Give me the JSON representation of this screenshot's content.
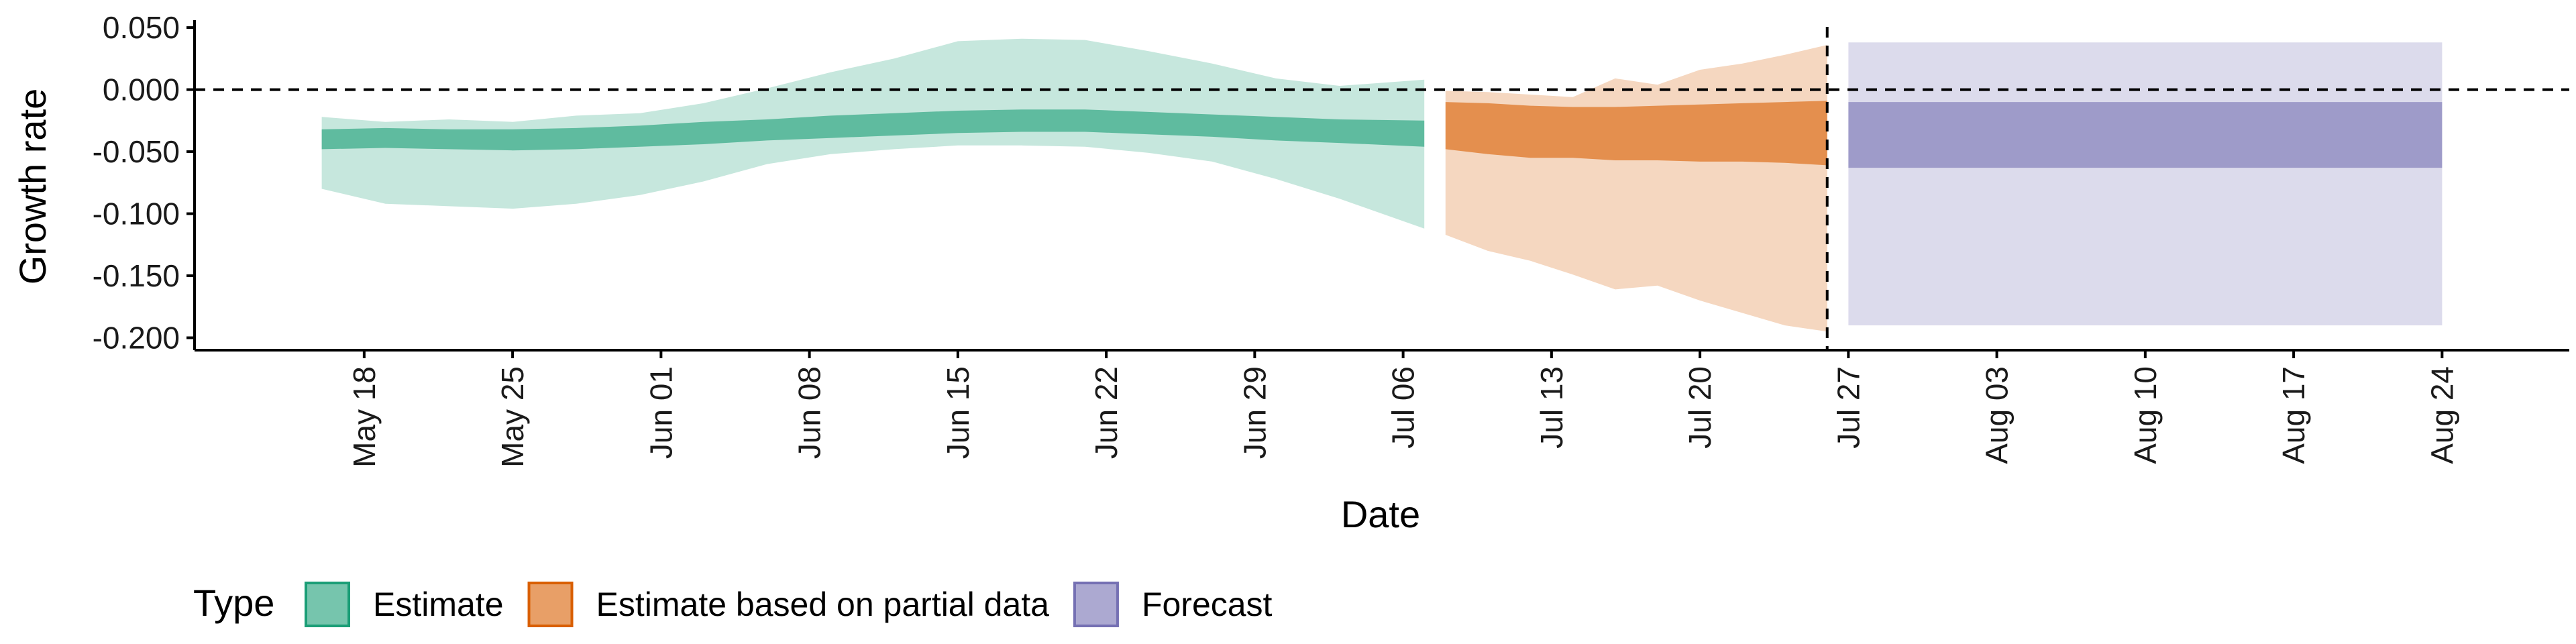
{
  "chart_data": {
    "type": "area",
    "xlabel": "Date",
    "ylabel": "Growth rate",
    "ylim": [
      -0.21,
      0.056
    ],
    "yticks": [
      0.05,
      0.0,
      -0.05,
      -0.1,
      -0.15,
      -0.2
    ],
    "ytick_labels": [
      "0.050",
      "0.000",
      "-0.050",
      "-0.100",
      "-0.150",
      "-0.200"
    ],
    "xlim": [
      "2020-05-10",
      "2020-08-30"
    ],
    "xticks": [
      "2020-05-18",
      "2020-05-25",
      "2020-06-01",
      "2020-06-08",
      "2020-06-15",
      "2020-06-22",
      "2020-06-29",
      "2020-07-06",
      "2020-07-13",
      "2020-07-20",
      "2020-07-27",
      "2020-08-03",
      "2020-08-10",
      "2020-08-17",
      "2020-08-24"
    ],
    "xtick_labels": [
      "May 18",
      "May 25",
      "Jun 01",
      "Jun 08",
      "Jun 15",
      "Jun 22",
      "Jun 29",
      "Jul 06",
      "Jul 13",
      "Jul 20",
      "Jul 27",
      "Aug 03",
      "Aug 10",
      "Aug 17",
      "Aug 24"
    ],
    "reference_lines": [
      {
        "axis": "y",
        "value": 0.0,
        "style": "dashed"
      },
      {
        "axis": "x",
        "value": "2020-07-26",
        "style": "dashed"
      }
    ],
    "grid": false,
    "legend": {
      "title": "Type",
      "position": "bottom-left",
      "entries": [
        {
          "label": "Estimate",
          "color": "#1b9e77"
        },
        {
          "label": "Estimate based on partial data",
          "color": "#d95f02"
        },
        {
          "label": "Forecast",
          "color": "#7570b3"
        }
      ]
    },
    "series": [
      {
        "name": "Estimate",
        "color": "#1b9e77",
        "x": [
          "2020-05-16",
          "2020-05-19",
          "2020-05-22",
          "2020-05-25",
          "2020-05-28",
          "2020-05-31",
          "2020-06-03",
          "2020-06-06",
          "2020-06-09",
          "2020-06-12",
          "2020-06-15",
          "2020-06-18",
          "2020-06-21",
          "2020-06-24",
          "2020-06-27",
          "2020-06-30",
          "2020-07-03",
          "2020-07-07"
        ],
        "outer_upper": [
          -0.022,
          -0.026,
          -0.024,
          -0.026,
          -0.021,
          -0.019,
          -0.011,
          0.001,
          0.014,
          0.025,
          0.039,
          0.041,
          0.04,
          0.031,
          0.021,
          0.009,
          0.003,
          0.008
        ],
        "outer_lower": [
          -0.08,
          -0.092,
          -0.094,
          -0.096,
          -0.092,
          -0.085,
          -0.074,
          -0.06,
          -0.052,
          -0.048,
          -0.045,
          -0.045,
          -0.046,
          -0.051,
          -0.058,
          -0.072,
          -0.088,
          -0.112
        ],
        "inner_upper": [
          -0.032,
          -0.031,
          -0.032,
          -0.032,
          -0.031,
          -0.029,
          -0.026,
          -0.024,
          -0.021,
          -0.019,
          -0.017,
          -0.016,
          -0.016,
          -0.018,
          -0.02,
          -0.022,
          -0.024,
          -0.025
        ],
        "inner_lower": [
          -0.048,
          -0.047,
          -0.048,
          -0.049,
          -0.048,
          -0.046,
          -0.044,
          -0.041,
          -0.039,
          -0.037,
          -0.035,
          -0.034,
          -0.034,
          -0.036,
          -0.038,
          -0.041,
          -0.043,
          -0.046
        ]
      },
      {
        "name": "Estimate based on partial data",
        "color": "#d95f02",
        "x": [
          "2020-07-08",
          "2020-07-10",
          "2020-07-12",
          "2020-07-14",
          "2020-07-16",
          "2020-07-18",
          "2020-07-20",
          "2020-07-22",
          "2020-07-24",
          "2020-07-26"
        ],
        "outer_upper": [
          -0.001,
          -0.002,
          -0.004,
          -0.006,
          0.009,
          0.004,
          0.016,
          0.021,
          0.028,
          0.036
        ],
        "outer_lower": [
          -0.117,
          -0.13,
          -0.138,
          -0.149,
          -0.161,
          -0.158,
          -0.17,
          -0.18,
          -0.19,
          -0.195
        ],
        "inner_upper": [
          -0.01,
          -0.011,
          -0.013,
          -0.014,
          -0.014,
          -0.013,
          -0.012,
          -0.011,
          -0.01,
          -0.009
        ],
        "inner_lower": [
          -0.048,
          -0.052,
          -0.055,
          -0.055,
          -0.057,
          -0.057,
          -0.058,
          -0.058,
          -0.059,
          -0.061
        ]
      },
      {
        "name": "Forecast",
        "color": "#7570b3",
        "x": [
          "2020-07-27",
          "2020-08-24"
        ],
        "outer_upper": [
          0.038,
          0.038
        ],
        "outer_lower": [
          -0.19,
          -0.19
        ],
        "inner_upper": [
          -0.01,
          -0.01
        ],
        "inner_lower": [
          -0.063,
          -0.063
        ]
      }
    ]
  }
}
